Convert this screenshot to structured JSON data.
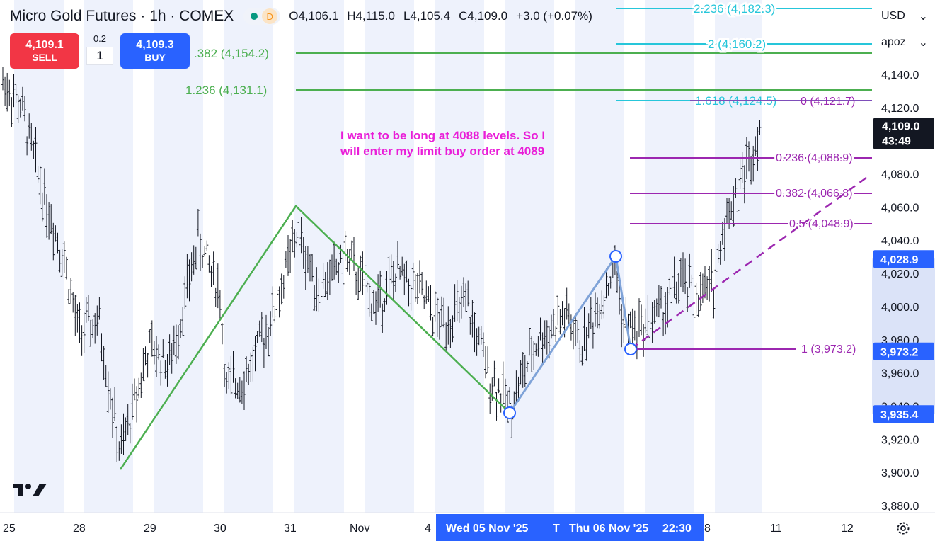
{
  "header": {
    "symbol_title": "Micro Gold Futures · 1h · COMEX",
    "market_status_letter": "D",
    "ohlc": {
      "open": "O4,106.1",
      "high": "H4,115.0",
      "low": "L4,105.4",
      "close": "C4,109.0",
      "change": "+3.0 (+0.07%)"
    }
  },
  "trade": {
    "sell_price": "4,109.1",
    "sell_label": "SELL",
    "buy_price": "4,109.3",
    "buy_label": "BUY",
    "step": "0.2",
    "quantity": "1"
  },
  "selectors": {
    "currency": "USD",
    "unit": "apoz"
  },
  "price_axis": {
    "ticks": [
      {
        "v": 4140,
        "label": "4,140.0"
      },
      {
        "v": 4120,
        "label": "4,120.0"
      },
      {
        "v": 4080,
        "label": "4,080.0"
      },
      {
        "v": 4060,
        "label": "4,060.0"
      },
      {
        "v": 4040,
        "label": "4,040.0"
      },
      {
        "v": 4020,
        "label": "4,020.0"
      },
      {
        "v": 4000,
        "label": "4,000.0"
      },
      {
        "v": 3980,
        "label": "3,980.0"
      },
      {
        "v": 3960,
        "label": "3,960.0"
      },
      {
        "v": 3940,
        "label": "3,940.0"
      },
      {
        "v": 3920,
        "label": "3,920.0"
      },
      {
        "v": 3900,
        "label": "3,900.0"
      },
      {
        "v": 3880,
        "label": "3,880.0"
      }
    ],
    "current_price": "4,109.0",
    "countdown": "43:49",
    "range_high_label": "4,028.9",
    "range_mid_label": "3,973.2",
    "range_low_label": "3,935.4",
    "range_high_value": 4028.9,
    "range_mid_value": 3973.2,
    "range_low_value": 3935.4,
    "current_value": 4109.0
  },
  "time_axis": {
    "labels": [
      "25",
      "28",
      "29",
      "30",
      "31",
      "Nov",
      "4",
      "8",
      "11",
      "12"
    ],
    "range_start": "Wed 05 Nov '25",
    "range_end": "Thu 06 Nov '25",
    "range_end_time": "22:30",
    "range_truncated": "T"
  },
  "fib_extension_green": [
    {
      "ratio_label": ".382 (4,154.2)",
      "value": 4154.2
    },
    {
      "ratio_label": "1.236 (4,131.1)",
      "value": 4131.1
    }
  ],
  "fib_extension_blue": [
    {
      "ratio_label": "2.236 (4,182.3)",
      "value": 4182.3
    },
    {
      "ratio_label": "2 (4,160.2)",
      "value": 4160.2
    },
    {
      "ratio_label": "1.618 (4,124.5)",
      "value": 4124.5
    }
  ],
  "fib_retracement_purple": [
    {
      "ratio_label": "0 (4,121.7)",
      "value": 4121.7
    },
    {
      "ratio_label": "0.236 (4,088.9)",
      "value": 4088.9
    },
    {
      "ratio_label": "0.382 (4,066.8)",
      "value": 4066.8
    },
    {
      "ratio_label": "0.5 (4,048.9)",
      "value": 4048.9
    },
    {
      "ratio_label": "1 (3,973.2)",
      "value": 3973.2
    }
  ],
  "annotation": {
    "line1": "I want to be long at 4088 levels. So I",
    "line2": "will enter my limit buy order at 4089"
  },
  "colors": {
    "green_fib": "#4caf50",
    "blue_fib": "#26c6da",
    "purple_fib": "#9c27b0",
    "annotation": "#e91ed8",
    "blue_zigzag": "#7fa3d8",
    "session_shade": "#eef2fc",
    "axis_highlight": "#dbe3f8",
    "price_tag": "#2962ff"
  }
}
